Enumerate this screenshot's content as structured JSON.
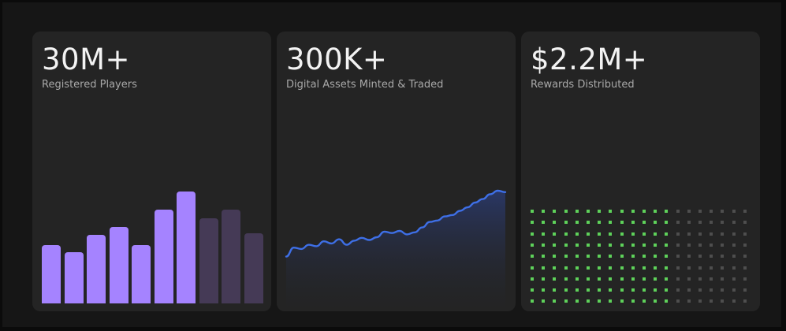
{
  "cards": [
    {
      "id": "players",
      "value": "30M+",
      "label": "Registered Players",
      "visual": {
        "kind": "bars",
        "bars": [
          {
            "level": 0.52,
            "highlighted": true
          },
          {
            "level": 0.46,
            "highlighted": true
          },
          {
            "level": 0.61,
            "highlighted": true
          },
          {
            "level": 0.68,
            "highlighted": true
          },
          {
            "level": 0.52,
            "highlighted": true
          },
          {
            "level": 0.84,
            "highlighted": true
          },
          {
            "level": 1.0,
            "highlighted": true
          },
          {
            "level": 0.76,
            "highlighted": false
          },
          {
            "level": 0.84,
            "highlighted": false
          },
          {
            "level": 0.63,
            "highlighted": false
          }
        ],
        "colors": {
          "highlighted": "#a583ff",
          "dim": "#453a56"
        }
      }
    },
    {
      "id": "assets",
      "value": "300K+",
      "label": "Digital Assets Minted & Traded",
      "visual": {
        "kind": "line",
        "points": [
          0.05,
          0.18,
          0.16,
          0.22,
          0.2,
          0.27,
          0.24,
          0.3,
          0.22,
          0.28,
          0.32,
          0.29,
          0.33,
          0.41,
          0.39,
          0.42,
          0.37,
          0.4,
          0.47,
          0.55,
          0.57,
          0.63,
          0.65,
          0.71,
          0.76,
          0.83,
          0.88,
          0.95,
          1.0,
          0.98
        ],
        "colors": {
          "line": "#3e6fe6",
          "fill": "#2a3868"
        }
      }
    },
    {
      "id": "rewards",
      "value": "$2.2M+",
      "label": "Rewards Distributed",
      "visual": {
        "kind": "dot-grid",
        "rows": 9,
        "columns": 20,
        "filled_columns": 13,
        "colors": {
          "on": "#5ed15a",
          "off": "#4e4e4e"
        }
      }
    }
  ]
}
